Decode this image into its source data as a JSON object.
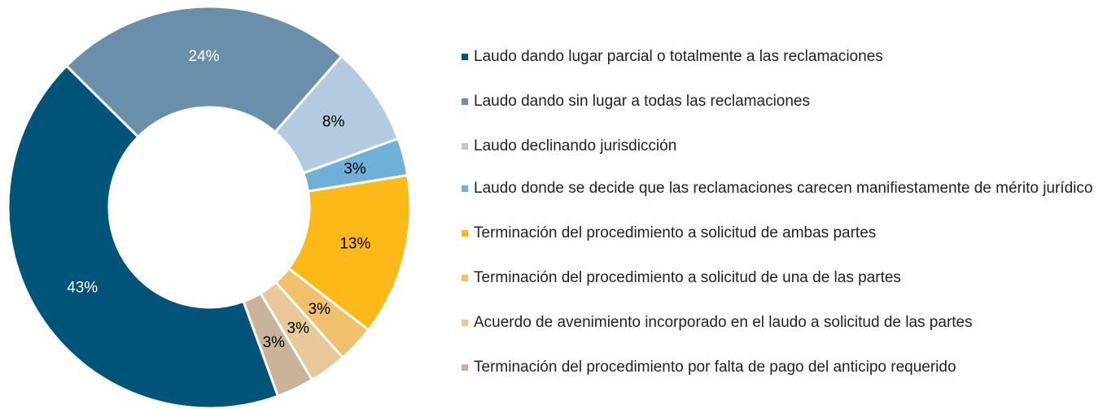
{
  "chart_data": {
    "type": "donut",
    "categories": [
      "Laudo dando lugar parcial o totalmente a las reclamaciones",
      "Laudo dando sin lugar a todas las reclamaciones",
      "Laudo declinando jurisdicción",
      "Laudo donde se decide que las reclamaciones carecen manifiestamente de mérito jurídico",
      "Terminación del procedimiento a solicitud de ambas partes",
      "Terminación del procedimiento a solicitud de una de las partes",
      "Acuerdo de avenimiento incorporado en el laudo a solicitud de las partes",
      "Terminación del procedimiento por falta de pago del anticipo requerido"
    ],
    "values": [
      43,
      24,
      8,
      3,
      13,
      3,
      3,
      3
    ],
    "value_labels": [
      "43%",
      "24%",
      "8%",
      "3%",
      "13%",
      "3%",
      "3%",
      "3%"
    ],
    "colors": [
      "#005479",
      "#6a8fab",
      "#b3cbe0",
      "#6fb0da",
      "#fcb918",
      "#f0c06b",
      "#e8c898",
      "#c9b49a"
    ],
    "label_colors": [
      "#ffffff",
      "#ffffff",
      "#000000",
      "#000000",
      "#000000",
      "#000000",
      "#000000",
      "#000000"
    ]
  }
}
